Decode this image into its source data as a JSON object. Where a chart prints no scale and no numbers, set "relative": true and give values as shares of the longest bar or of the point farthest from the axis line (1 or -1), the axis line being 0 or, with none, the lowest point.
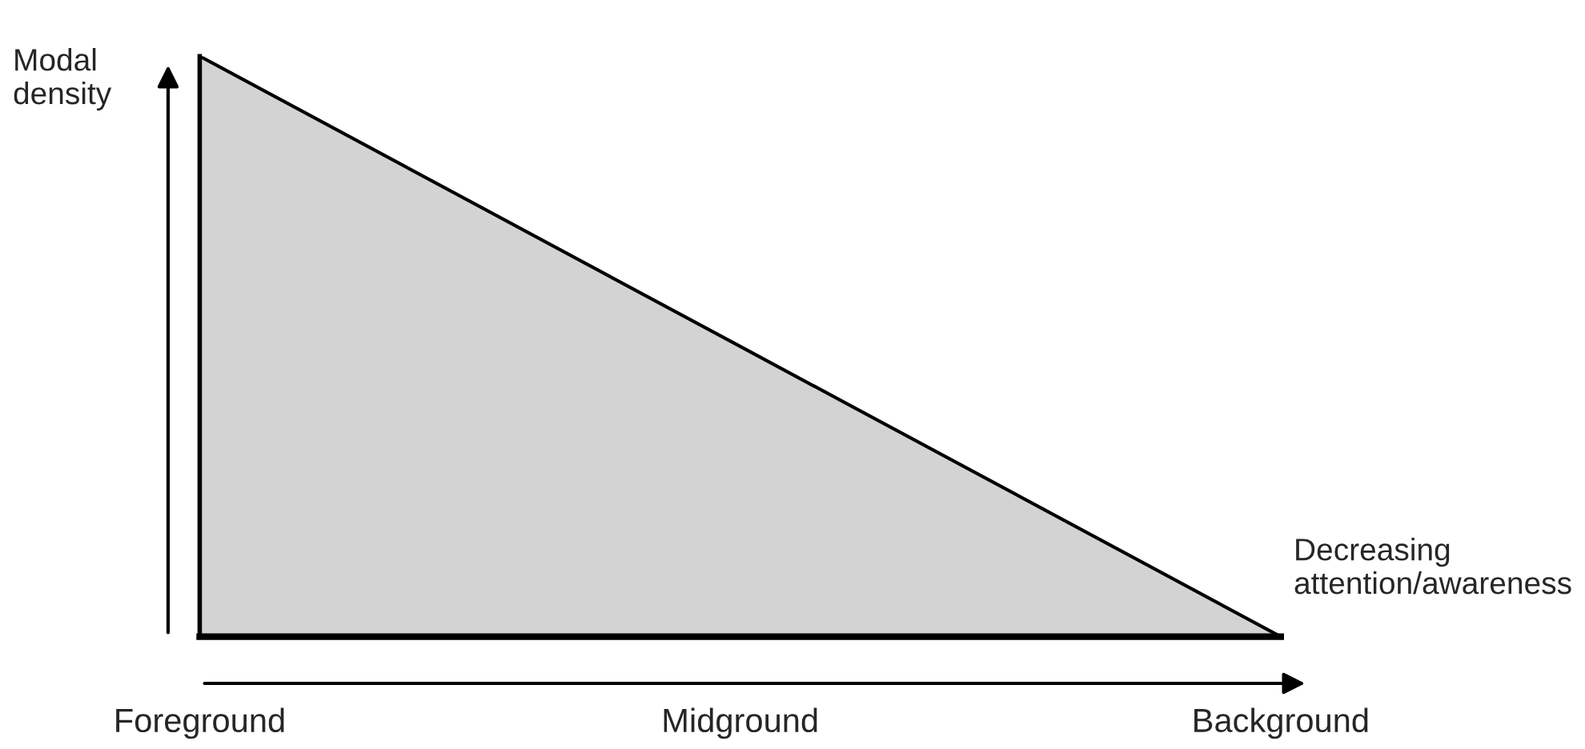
{
  "chart_data": {
    "type": "area",
    "relative": true,
    "xlabel": "Decreasing attention/awareness",
    "ylabel": "Modal density",
    "categories": [
      "Foreground",
      "Midground",
      "Background"
    ],
    "series": [
      {
        "color": "#d3d3d3",
        "values": [
          1,
          0.5,
          0
        ]
      }
    ],
    "grid": false
  }
}
